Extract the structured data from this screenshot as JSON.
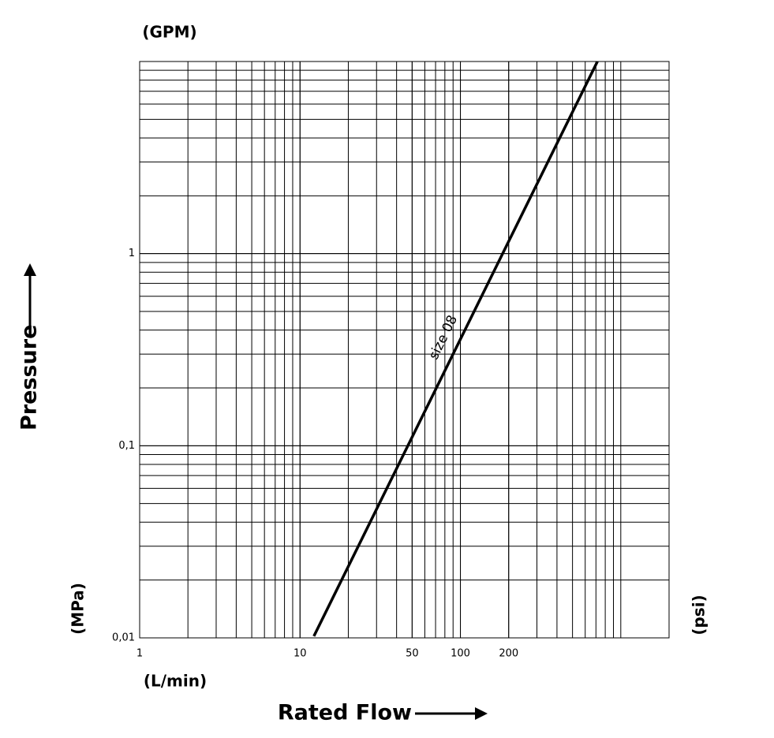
{
  "chart_data": {
    "type": "line",
    "x_label": "Rated Flow",
    "y_label": "Pressure",
    "units": {
      "top": "(GPM)",
      "left": "(MPa)",
      "right": "(psi)",
      "bottom": "(L/min)"
    },
    "annotation": "size 08",
    "log_x": true,
    "log_y": true,
    "grid": true,
    "minor_grid": true,
    "xlim": [
      1,
      2000
    ],
    "ylim": [
      0.01,
      10
    ],
    "xticks": [
      1,
      10,
      50,
      100,
      200
    ],
    "yticks": [
      {
        "value": 0.01,
        "label": "0,01"
      },
      {
        "value": 0.1,
        "label": "0,1"
      },
      1
    ],
    "x": [
      12.2,
      715
    ],
    "series": [
      {
        "name": "size 08",
        "color": "#000000",
        "values": [
          0.0102,
          10
        ]
      }
    ]
  }
}
